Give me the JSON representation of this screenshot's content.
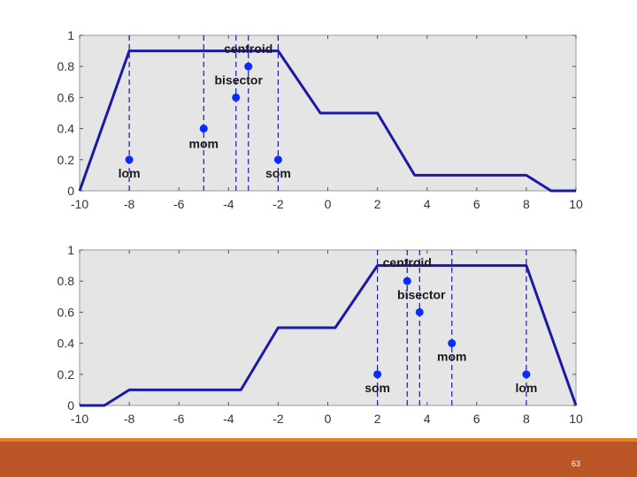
{
  "slide": {
    "page_number": "63"
  },
  "colors": {
    "plot_bg": "#e5e5e5",
    "series": "#1a1aa6",
    "marker": "#0a2aff",
    "label": "#1a1a1a",
    "axis": "#555555",
    "footer_bar": "#bb5627",
    "footer_line": "#e0831f"
  },
  "chart_data": [
    {
      "type": "line",
      "title": "",
      "xlabel": "",
      "ylabel": "",
      "xlim": [
        -10,
        10
      ],
      "ylim": [
        0,
        1
      ],
      "xticks": [
        -10,
        -8,
        -6,
        -4,
        -2,
        0,
        2,
        4,
        6,
        8,
        10
      ],
      "xtick_labels": [
        "-10",
        "-8",
        "-6",
        "-4",
        "-2",
        "0",
        "2",
        "4",
        "6",
        "8",
        "10"
      ],
      "yticks": [
        0,
        0.2,
        0.4,
        0.6,
        0.8,
        1
      ],
      "ytick_labels": [
        "0",
        "0.2",
        "0.4",
        "0.6",
        "0.8",
        "1"
      ],
      "grid": false,
      "series": [
        {
          "x": [
            -10,
            -8,
            -2,
            -0.3,
            2,
            3.5,
            8,
            9,
            10
          ],
          "y": [
            0,
            0.9,
            0.9,
            0.5,
            0.5,
            0.1,
            0.1,
            0,
            0
          ]
        }
      ],
      "vlines": [
        -8,
        -5,
        -3.7,
        -3.2,
        -2
      ],
      "annotations": [
        {
          "x": -8,
          "y": 0.2,
          "label": "lom"
        },
        {
          "x": -5,
          "y": 0.4,
          "label": "mom"
        },
        {
          "x": -3.7,
          "y": 0.6,
          "label": "bisector"
        },
        {
          "x": -3.2,
          "y": 0.8,
          "label": "centroid"
        },
        {
          "x": -2,
          "y": 0.2,
          "label": "som"
        }
      ]
    },
    {
      "type": "line",
      "title": "",
      "xlabel": "",
      "ylabel": "",
      "xlim": [
        -10,
        10
      ],
      "ylim": [
        0,
        1
      ],
      "xticks": [
        -10,
        -8,
        -6,
        -4,
        -2,
        0,
        2,
        4,
        6,
        8,
        10
      ],
      "xtick_labels": [
        "-10",
        "-8",
        "-6",
        "-4",
        "-2",
        "0",
        "2",
        "4",
        "6",
        "8",
        "10"
      ],
      "yticks": [
        0,
        0.2,
        0.4,
        0.6,
        0.8,
        1
      ],
      "ytick_labels": [
        "0",
        "0.2",
        "0.4",
        "0.6",
        "0.8",
        "1"
      ],
      "grid": false,
      "series": [
        {
          "x": [
            -10,
            -9,
            -8,
            -3.5,
            -2,
            0.3,
            2,
            8,
            10
          ],
          "y": [
            0,
            0,
            0.1,
            0.1,
            0.5,
            0.5,
            0.9,
            0.9,
            0
          ]
        }
      ],
      "vlines": [
        2,
        3.2,
        3.7,
        5,
        8
      ],
      "annotations": [
        {
          "x": 2,
          "y": 0.2,
          "label": "som"
        },
        {
          "x": 3.2,
          "y": 0.8,
          "label": "centroid"
        },
        {
          "x": 3.7,
          "y": 0.6,
          "label": "bisector"
        },
        {
          "x": 5,
          "y": 0.4,
          "label": "mom"
        },
        {
          "x": 8,
          "y": 0.2,
          "label": "lom"
        }
      ]
    }
  ]
}
